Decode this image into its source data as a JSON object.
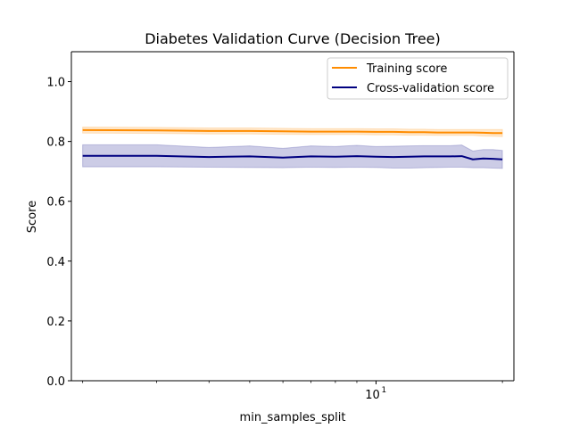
{
  "chart_data": {
    "type": "line",
    "title": "Diabetes Validation Curve (Decision Tree)",
    "xlabel": "min_samples_split",
    "ylabel": "Score",
    "xscale": "log",
    "xlim": [
      1.88,
      21.3
    ],
    "ylim": [
      0.0,
      1.1
    ],
    "x_ticks": [
      {
        "value": 10,
        "base": "10",
        "exponent": "1"
      }
    ],
    "y_ticks": [
      {
        "value": 0.0,
        "label": "0.0"
      },
      {
        "value": 0.2,
        "label": "0.2"
      },
      {
        "value": 0.4,
        "label": "0.4"
      },
      {
        "value": 0.6,
        "label": "0.6"
      },
      {
        "value": 0.8,
        "label": "0.8"
      },
      {
        "value": 1.0,
        "label": "1.0"
      }
    ],
    "grid": false,
    "legend_position": "top-right",
    "x": [
      2,
      3,
      4,
      5,
      6,
      7,
      8,
      9,
      10,
      11,
      12,
      13,
      14,
      15,
      16,
      17,
      18,
      19,
      20
    ],
    "series": [
      {
        "name": "Training score",
        "color": "#ff8c00",
        "values": [
          0.838,
          0.837,
          0.835,
          0.835,
          0.834,
          0.833,
          0.833,
          0.833,
          0.832,
          0.832,
          0.831,
          0.831,
          0.83,
          0.83,
          0.83,
          0.83,
          0.829,
          0.828,
          0.828
        ],
        "band_lower": [
          0.828,
          0.827,
          0.825,
          0.825,
          0.824,
          0.823,
          0.823,
          0.823,
          0.822,
          0.822,
          0.821,
          0.821,
          0.82,
          0.82,
          0.82,
          0.82,
          0.818,
          0.817,
          0.816
        ],
        "band_upper": [
          0.848,
          0.847,
          0.845,
          0.845,
          0.844,
          0.843,
          0.843,
          0.843,
          0.842,
          0.842,
          0.841,
          0.841,
          0.84,
          0.84,
          0.84,
          0.84,
          0.84,
          0.84,
          0.84
        ]
      },
      {
        "name": "Cross-validation score",
        "color": "#000080",
        "values": [
          0.752,
          0.752,
          0.748,
          0.75,
          0.746,
          0.75,
          0.749,
          0.751,
          0.749,
          0.748,
          0.749,
          0.75,
          0.75,
          0.75,
          0.751,
          0.74,
          0.743,
          0.742,
          0.74
        ],
        "band_lower": [
          0.715,
          0.715,
          0.714,
          0.713,
          0.712,
          0.714,
          0.713,
          0.714,
          0.713,
          0.711,
          0.711,
          0.712,
          0.713,
          0.714,
          0.714,
          0.712,
          0.712,
          0.711,
          0.71
        ],
        "band_upper": [
          0.789,
          0.789,
          0.78,
          0.785,
          0.777,
          0.785,
          0.783,
          0.787,
          0.783,
          0.784,
          0.785,
          0.786,
          0.786,
          0.786,
          0.788,
          0.768,
          0.773,
          0.773,
          0.77
        ]
      }
    ]
  }
}
